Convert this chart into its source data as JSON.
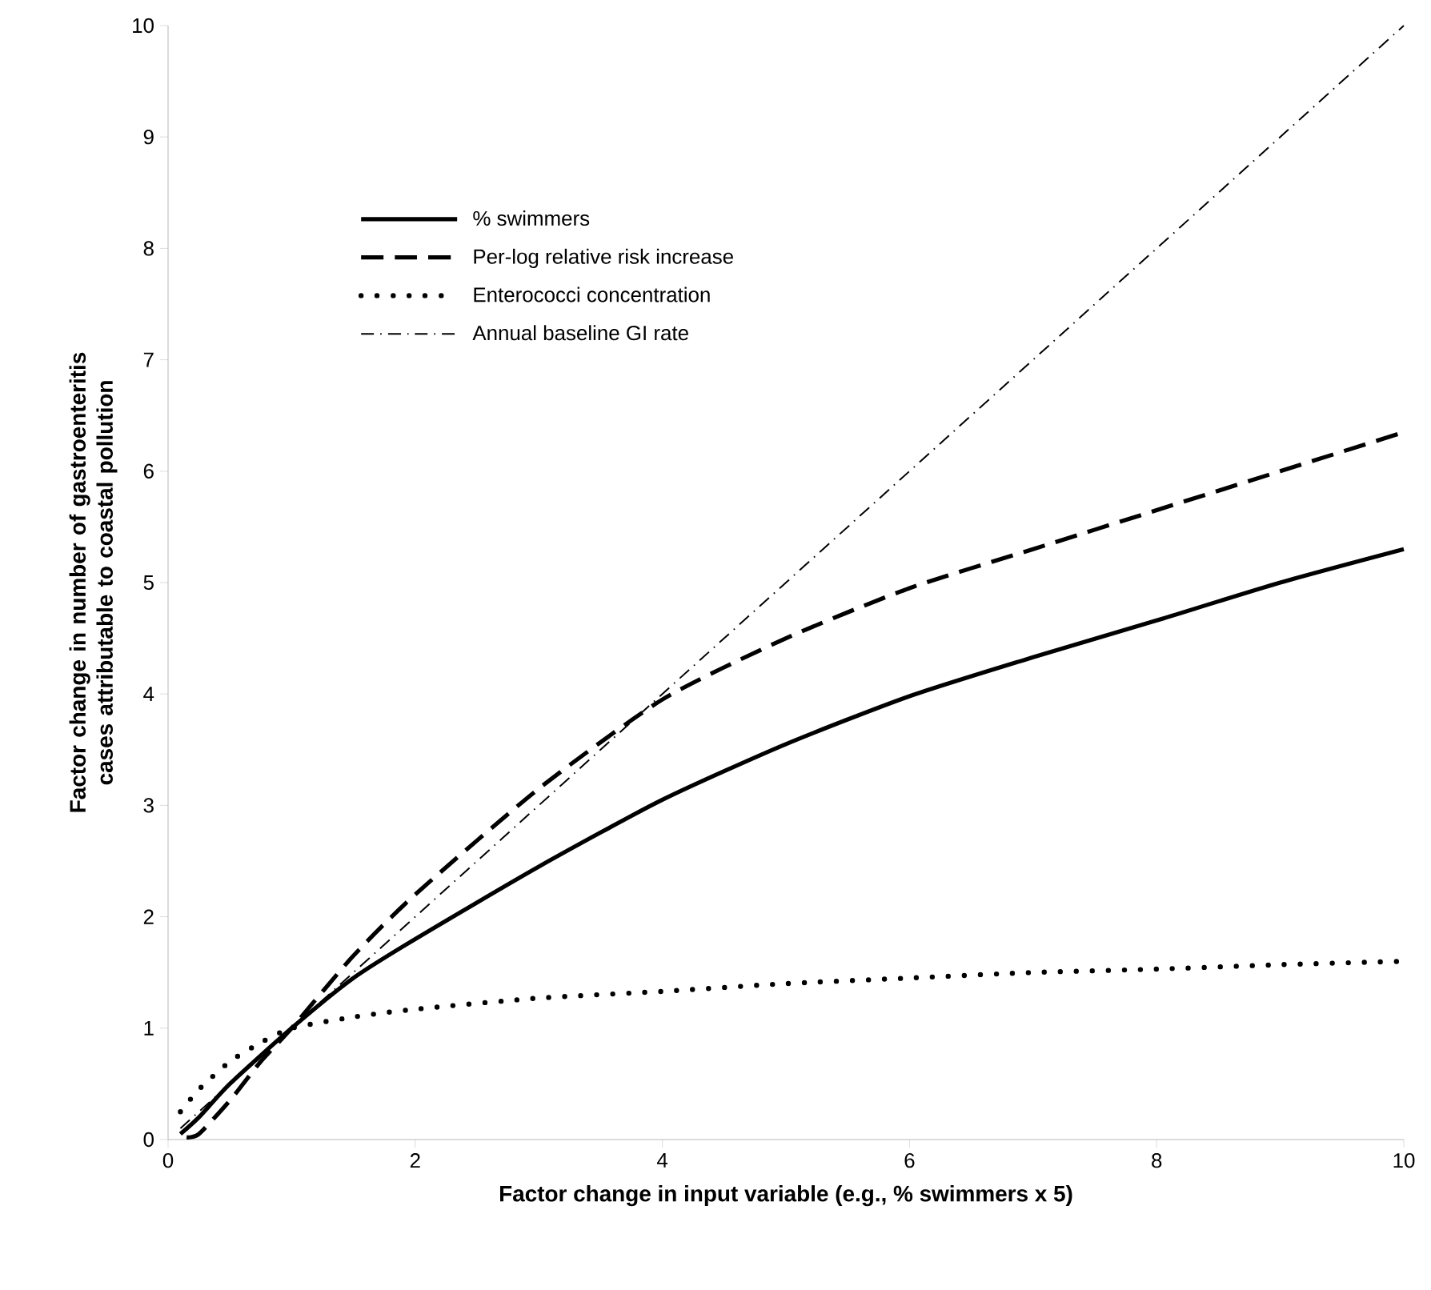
{
  "chart_data": {
    "type": "line",
    "xlabel": "Factor change in input variable (e.g., % swimmers x 5)",
    "ylabel": "Factor change in number of gastroenteritis cases attributable to coastal pollution",
    "xlim": [
      0,
      10
    ],
    "ylim": [
      0,
      10
    ],
    "xticks": [
      0,
      2,
      4,
      6,
      8,
      10
    ],
    "yticks": [
      0,
      1,
      2,
      3,
      4,
      5,
      6,
      7,
      8,
      9,
      10
    ],
    "grid": false,
    "legend": "top left",
    "marker": "none",
    "series": [
      {
        "name": "% swimmers",
        "color": "#000000",
        "line_style": "solid",
        "x": [
          0.1,
          0.25,
          0.5,
          1,
          1.5,
          2,
          3,
          4,
          5,
          6,
          7,
          8,
          9,
          10
        ],
        "values": [
          0.05,
          0.2,
          0.5,
          1.0,
          1.45,
          1.8,
          2.45,
          3.05,
          3.55,
          3.98,
          4.33,
          4.66,
          5.0,
          5.3
        ]
      },
      {
        "name": "Per-log relative risk increase",
        "color": "#000000",
        "line_style": "dashed",
        "x": [
          0.15,
          0.25,
          0.5,
          0.75,
          1,
          1.5,
          2,
          3,
          4,
          5,
          6,
          7,
          8,
          9,
          10
        ],
        "values": [
          0.02,
          0.05,
          0.35,
          0.7,
          1.0,
          1.65,
          2.2,
          3.15,
          3.95,
          4.5,
          4.95,
          5.3,
          5.65,
          6.0,
          6.35
        ]
      },
      {
        "name": "Enterococci concentration",
        "color": "#000000",
        "line_style": "dotted",
        "x": [
          0.1,
          0.25,
          0.5,
          0.75,
          1,
          1.5,
          2,
          3,
          4,
          5,
          6,
          7,
          8,
          9,
          10
        ],
        "values": [
          0.25,
          0.45,
          0.7,
          0.87,
          1.0,
          1.1,
          1.17,
          1.27,
          1.33,
          1.4,
          1.45,
          1.5,
          1.53,
          1.57,
          1.6
        ]
      },
      {
        "name": "Annual baseline GI rate",
        "color": "#000000",
        "line_style": "dashdotted",
        "x": [
          0.1,
          10
        ],
        "values": [
          0.1,
          10
        ]
      }
    ]
  }
}
